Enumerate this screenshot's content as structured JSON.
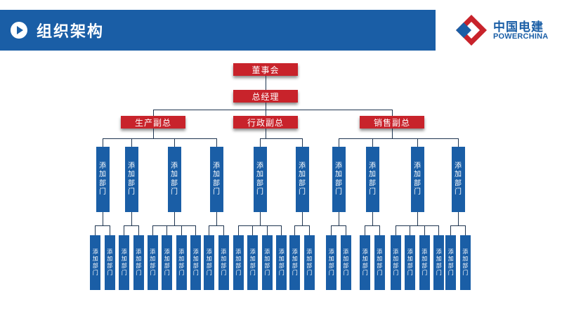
{
  "header": {
    "title": "组织架构",
    "bar_color": "#1a5ea6",
    "icon": "play-circle-icon"
  },
  "logo": {
    "name_cn": "中国电建",
    "name_en": "POWERCHINA",
    "brand_color": "#1a5ea6",
    "accent_color": "#c8232b"
  },
  "org_chart": {
    "board": "董事会",
    "general_manager": "总经理",
    "deputies": [
      {
        "label": "生产副总",
        "departments": 4
      },
      {
        "label": "行政副总",
        "departments": 2
      },
      {
        "label": "销售副总",
        "departments": 4
      }
    ],
    "department_label": "添加部门",
    "sub_department_label": "添加部门",
    "sub_departments_per_department": [
      2,
      2,
      4,
      2,
      4,
      2,
      2,
      2,
      4,
      2
    ],
    "box_color_red": "#c8232b",
    "box_color_blue": "#1a5ea6"
  }
}
